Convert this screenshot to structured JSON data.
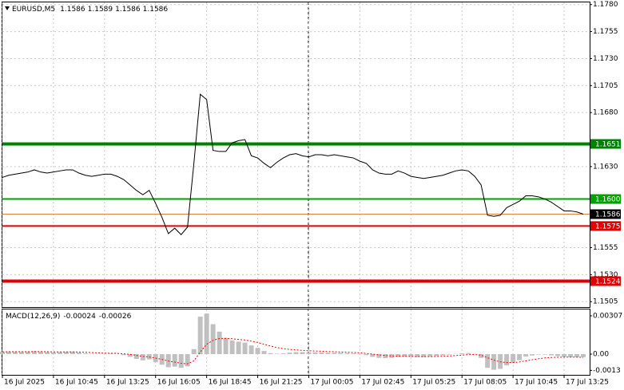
{
  "chart_data": [
    {
      "type": "line",
      "title": "EURUSD,M5",
      "ohlc": [
        1.1586,
        1.1589,
        1.1586,
        1.1586
      ],
      "color": "#000000",
      "values": [
        1.162,
        1.1622,
        1.1623,
        1.1624,
        1.1625,
        1.1627,
        1.1625,
        1.1624,
        1.1625,
        1.1626,
        1.1627,
        1.1627,
        1.1624,
        1.1622,
        1.1621,
        1.1622,
        1.1623,
        1.1623,
        1.1621,
        1.1618,
        1.1613,
        1.1608,
        1.1604,
        1.1608,
        1.1596,
        1.1583,
        1.1568,
        1.1573,
        1.1567,
        1.1574,
        1.1633,
        1.1697,
        1.1692,
        1.1645,
        1.1644,
        1.1644,
        1.1652,
        1.1654,
        1.1655,
        1.164,
        1.1638,
        1.1633,
        1.1629,
        1.1634,
        1.1638,
        1.1641,
        1.1642,
        1.164,
        1.1639,
        1.1641,
        1.1641,
        1.164,
        1.1641,
        1.164,
        1.1639,
        1.1638,
        1.1635,
        1.1633,
        1.1627,
        1.1624,
        1.1623,
        1.1623,
        1.1626,
        1.1624,
        1.1621,
        1.162,
        1.1619,
        1.162,
        1.1621,
        1.1622,
        1.1624,
        1.1626,
        1.1627,
        1.1626,
        1.1621,
        1.1613,
        1.1585,
        1.1584,
        1.1585,
        1.1592,
        1.1595,
        1.1598,
        1.1603,
        1.1603,
        1.1602,
        1.16,
        1.1597,
        1.1593,
        1.1589,
        1.1589,
        1.1588,
        1.1586
      ],
      "xlim": [
        0,
        92
      ],
      "xticks": [
        {
          "value": 0,
          "label": "16 Jul 2025"
        },
        {
          "value": 8,
          "label": "16 Jul 10:45"
        },
        {
          "value": 16,
          "label": "16 Jul 13:25"
        },
        {
          "value": 24,
          "label": "16 Jul 16:05"
        },
        {
          "value": 32,
          "label": "16 Jul 18:45"
        },
        {
          "value": 40,
          "label": "16 Jul 21:25"
        },
        {
          "value": 48,
          "label": "17 Jul 00:05"
        },
        {
          "value": 56,
          "label": "17 Jul 02:45"
        },
        {
          "value": 64,
          "label": "17 Jul 05:25"
        },
        {
          "value": 72,
          "label": "17 Jul 08:05"
        },
        {
          "value": 80,
          "label": "17 Jul 10:45"
        },
        {
          "value": 88,
          "label": "17 Jul 13:25"
        }
      ],
      "ylim": [
        1.15,
        1.1782
      ],
      "yticks": [
        {
          "value": 1.178,
          "label": "1.1780"
        },
        1.1755,
        {
          "value": 1.173,
          "label": "1.1730"
        },
        1.1705,
        {
          "value": 1.168,
          "label": "1.1680"
        },
        {
          "value": 1.163,
          "label": "1.1630"
        },
        1.1555,
        {
          "value": 1.153,
          "label": "1.1530"
        },
        1.1505
      ],
      "grid": true,
      "levels": [
        {
          "value": 1.1651,
          "color": "#008000",
          "width": 4,
          "tag_color": "#008000"
        },
        {
          "value": 1.16,
          "label": "1.1600",
          "color": "#00a000",
          "width": 2,
          "tag_color": "#00a000"
        },
        {
          "value": 1.1586,
          "color": "#e08040",
          "width": 1,
          "tag_color": "#000000"
        },
        {
          "value": 1.1575,
          "color": "#e00000",
          "width": 2,
          "tag_color": "#e00000"
        },
        {
          "value": 1.1524,
          "color": "#e00000",
          "width": 4,
          "tag_color": "#e00000"
        }
      ]
    },
    {
      "type": "macd",
      "title": "MACD(12,26,9)",
      "histogram": {
        "color": "#c0c0c0",
        "values": [
          0.0002,
          0.00021,
          0.0002,
          0.00018,
          0.0002,
          0.00024,
          0.0002,
          0.00016,
          0.00014,
          0.00016,
          0.00018,
          0.0002,
          0.00012,
          6e-05,
          2e-05,
          0,
          2e-05,
          4e-05,
          2e-05,
          -8e-05,
          -0.00022,
          -0.00038,
          -0.0005,
          -0.00042,
          -0.00065,
          -0.00085,
          -0.00105,
          -0.001,
          -0.0011,
          -0.00098,
          0.0004,
          0.003,
          0.00325,
          0.0024,
          0.0018,
          0.0013,
          0.0011,
          0.001,
          0.00092,
          0.0007,
          0.0005,
          0.00025,
          8e-05,
          4e-05,
          6e-05,
          0.00012,
          0.00016,
          0.00016,
          0.00014,
          0.00014,
          0.00013,
          0.00012,
          0.00011,
          0.0001,
          8e-05,
          6e-05,
          0,
          -8e-05,
          -0.00022,
          -0.0003,
          -0.00032,
          -0.0003,
          -0.00022,
          -0.0002,
          -0.00022,
          -0.00024,
          -0.00024,
          -0.0002,
          -0.00015,
          -0.0001,
          -4e-05,
          2e-05,
          6e-05,
          8e-05,
          2e-05,
          -0.0003,
          -0.0011,
          -0.00125,
          -0.00118,
          -0.0009,
          -0.00068,
          -0.00048,
          -0.0002,
          -0.0001,
          -4e-05,
          -4e-05,
          -0.0001,
          -0.00016,
          -0.00022,
          -0.00024,
          -0.00024,
          -0.00024
        ]
      },
      "signal": {
        "color": "#ff0000",
        "values": [
          0.00018,
          0.00019,
          0.00019,
          0.00019,
          0.00019,
          0.0002,
          0.0002,
          0.00019,
          0.00018,
          0.00018,
          0.00018,
          0.00018,
          0.00017,
          0.00015,
          0.00012,
          0.0001,
          8e-05,
          7e-05,
          6e-05,
          3e-05,
          -2e-05,
          -0.0001,
          -0.00018,
          -0.00023,
          -0.00032,
          -0.00042,
          -0.00055,
          -0.00064,
          -0.00073,
          -0.00078,
          -0.00054,
          0.00017,
          0.00079,
          0.00111,
          0.00125,
          0.00126,
          0.00123,
          0.00118,
          0.00113,
          0.00104,
          0.00093,
          0.00079,
          0.00065,
          0.00053,
          0.00044,
          0.00038,
          0.00034,
          0.0003,
          0.00027,
          0.00025,
          0.00023,
          0.00021,
          0.00019,
          0.00017,
          0.00015,
          0.00013,
          0.0001,
          6e-05,
          0,
          -6e-05,
          -0.00011,
          -0.00015,
          -0.00016,
          -0.00017,
          -0.00018,
          -0.00019,
          -0.0002,
          -0.0002,
          -0.00019,
          -0.00017,
          -0.00015,
          -0.00011,
          -8e-05,
          -4e-05,
          -3e-05,
          -8e-05,
          -0.00029,
          -0.00048,
          -0.00062,
          -0.00067,
          -0.00067,
          -0.00063,
          -0.00054,
          -0.00045,
          -0.00037,
          -0.0003,
          -0.00027,
          -0.00025,
          -0.00024,
          -0.00024,
          -0.00024,
          -0.00026
        ]
      },
      "ylim": [
        -0.00166,
        0.00358
      ],
      "yticks": [
        0.00307,
        {
          "value": 0,
          "label": "0.00"
        },
        {
          "value": -0.0013,
          "label": "-0.0013"
        }
      ]
    }
  ]
}
